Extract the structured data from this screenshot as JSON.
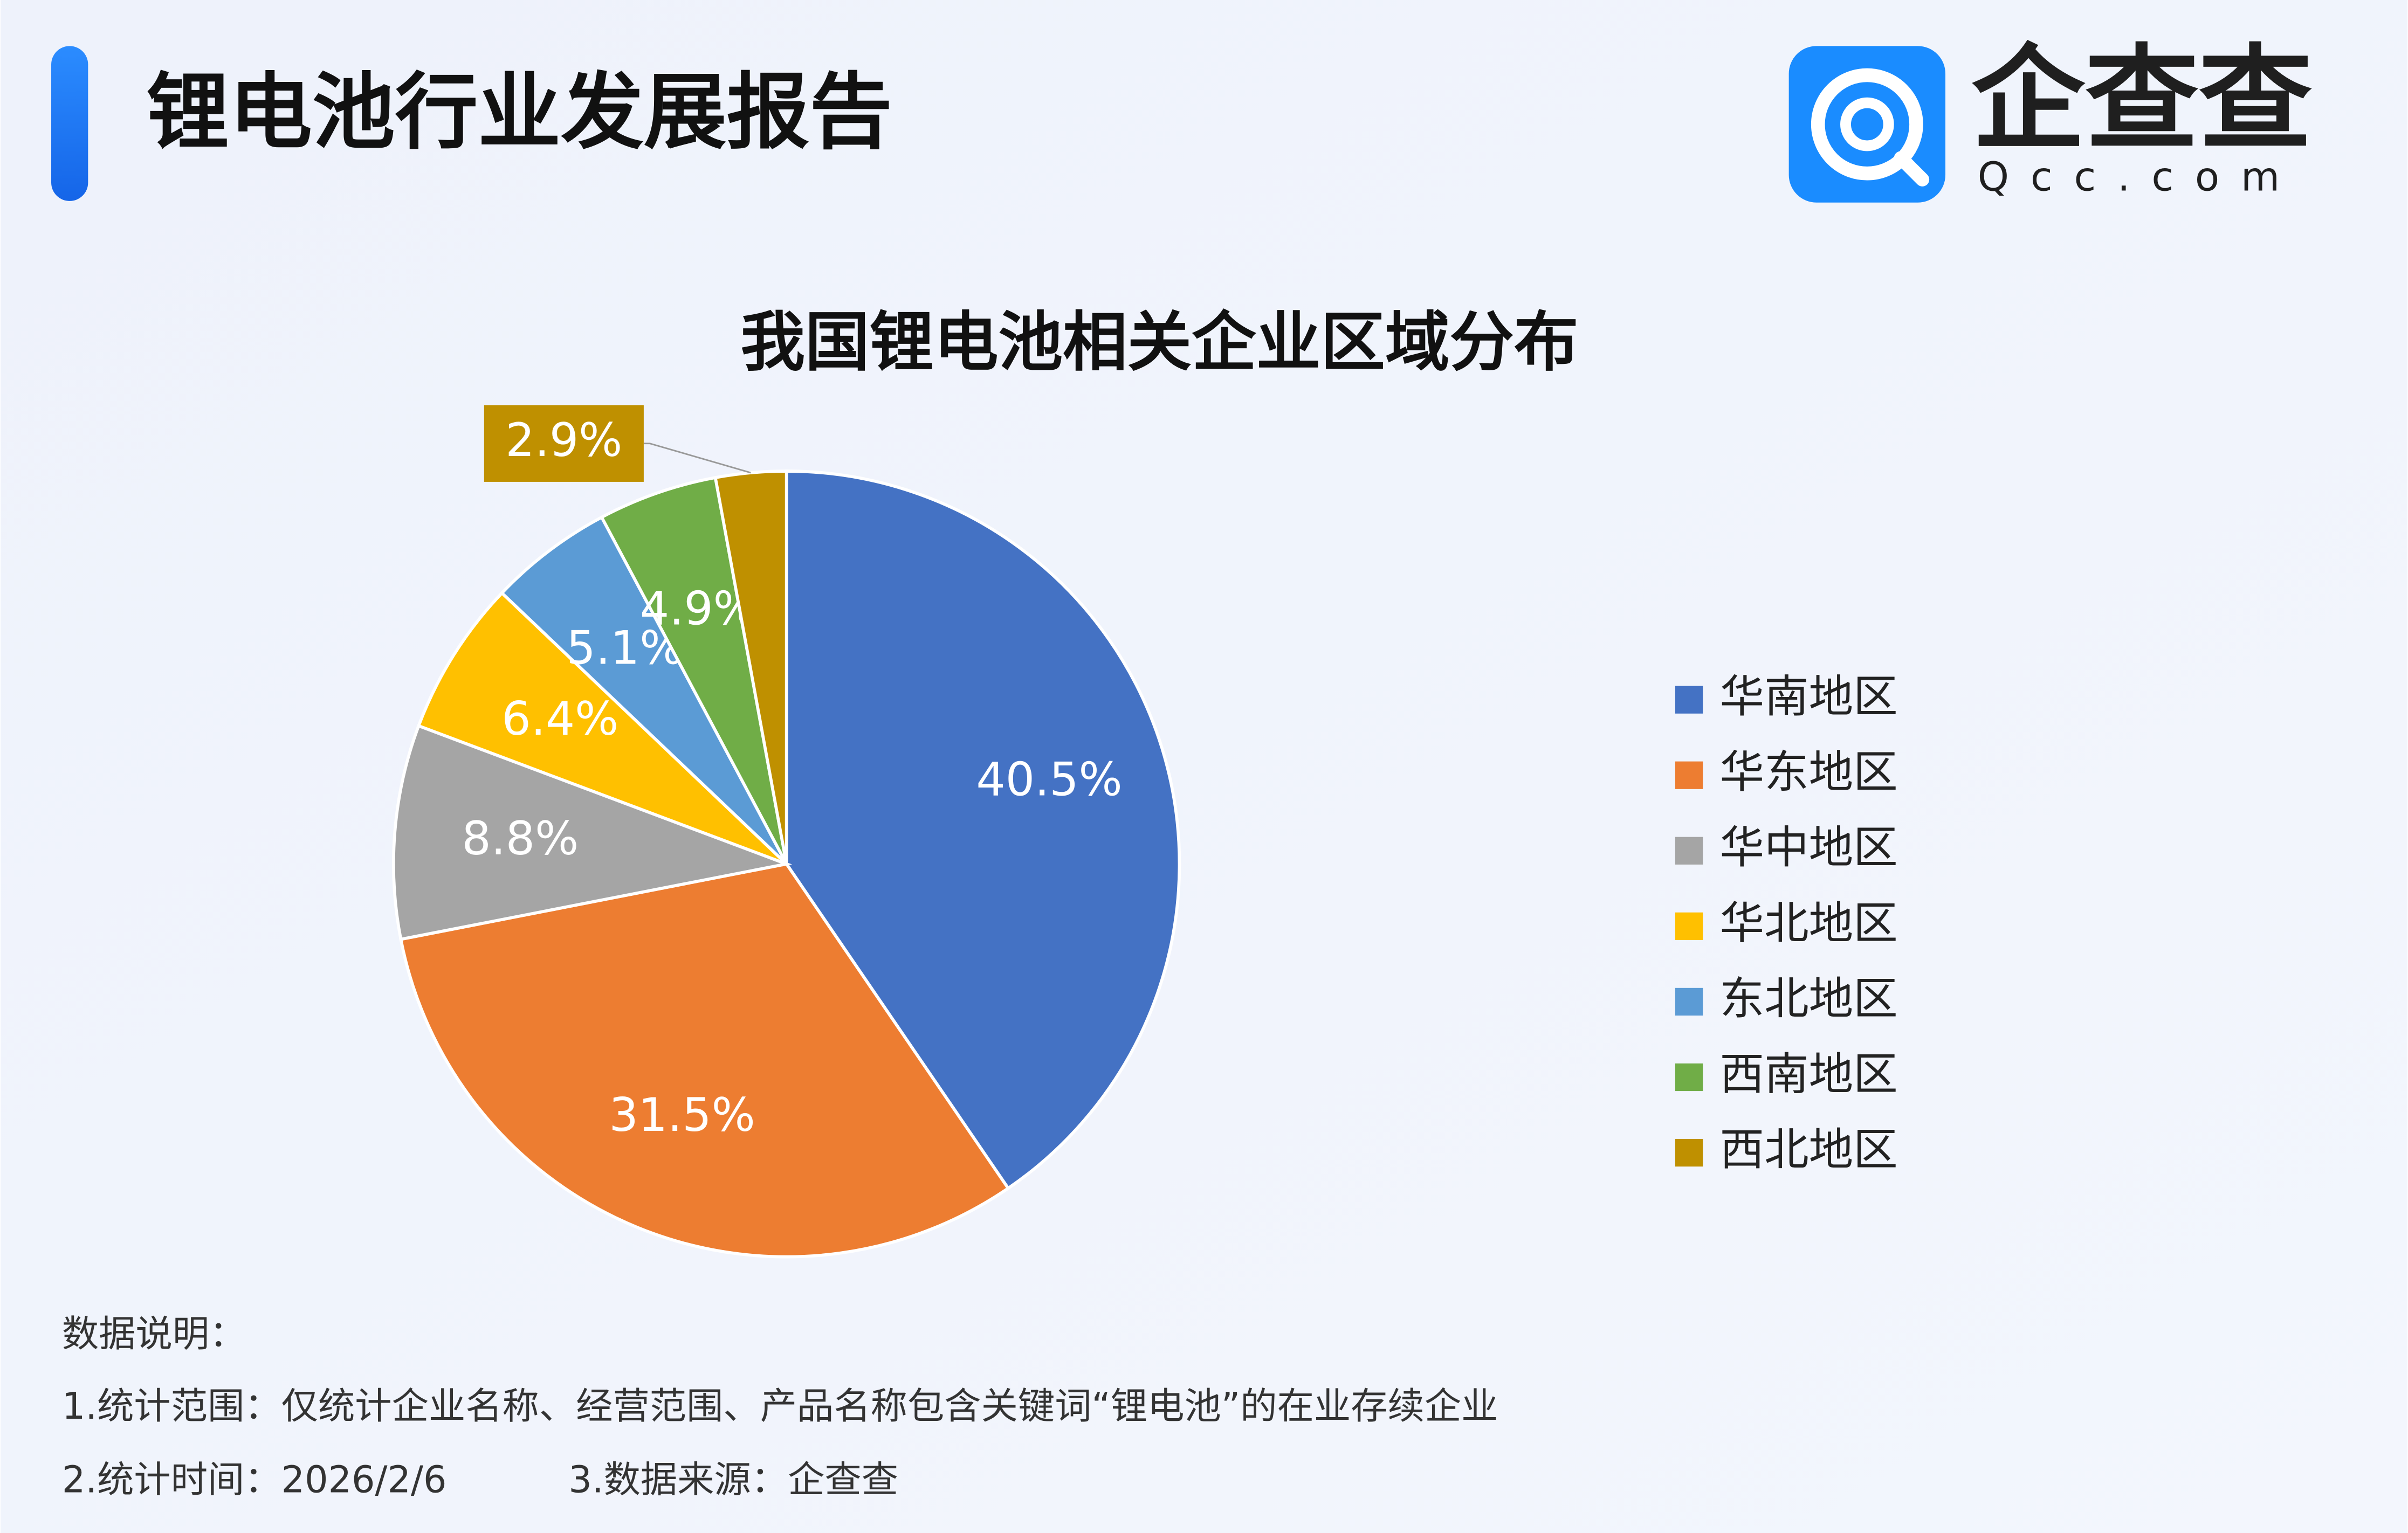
{
  "header": {
    "title": "锂电池行业发展报告",
    "logo_name": "企查查",
    "logo_domain": "Qcc.com"
  },
  "chart_data": {
    "type": "pie",
    "title": "我国锂电池相关企业区域分布",
    "categories": [
      "华南地区",
      "华东地区",
      "华中地区",
      "华北地区",
      "东北地区",
      "西南地区",
      "西北地区"
    ],
    "values": [
      40.5,
      31.5,
      8.8,
      6.4,
      5.1,
      4.9,
      2.9
    ],
    "value_labels": [
      "40.5%",
      "31.5%",
      "8.8%",
      "6.4%",
      "5.1%",
      "4.9%",
      "2.9%"
    ],
    "colors": [
      "#4472c4",
      "#ed7d31",
      "#a5a5a5",
      "#ffc000",
      "#5b9bd5",
      "#70ad47",
      "#bf9000"
    ],
    "legend": "right"
  },
  "notes": {
    "heading": "数据说明：",
    "scope": "1.统计范围：仅统计企业名称、经营范围、产品名称包含关键词“锂电池”的在业存续企业",
    "time": "2.统计时间：2026/2/6",
    "source": "3.数据来源：企查查"
  }
}
